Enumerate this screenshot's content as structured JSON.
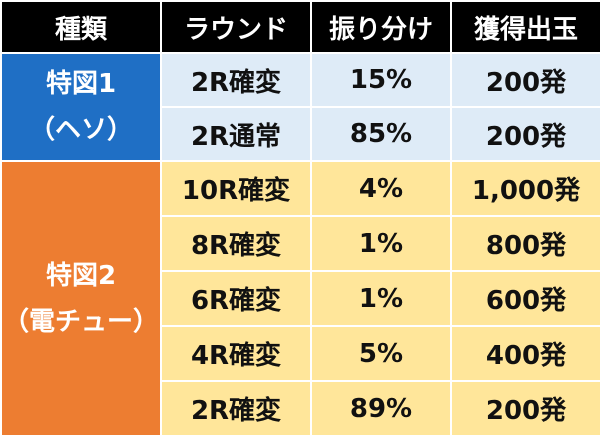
{
  "colors": {
    "header_bg": "#000000",
    "blue_category_bg": "#1f6fc5",
    "blue_cell_bg": "#deebf7",
    "orange_category_bg": "#ed7d31",
    "orange_cell_bg": "#ffe69a"
  },
  "headers": [
    "種類",
    "ラウンド",
    "振り分け",
    "獲得出玉"
  ],
  "groups": [
    {
      "category": [
        "特図1",
        "（ヘソ）"
      ],
      "color": "blue",
      "rows": [
        {
          "round": "2R確変",
          "dist": "15%",
          "payout": "200発"
        },
        {
          "round": "2R通常",
          "dist": "85%",
          "payout": "200発"
        }
      ]
    },
    {
      "category": [
        "特図2",
        "（電チュー）"
      ],
      "color": "orange",
      "rows": [
        {
          "round": "10R確変",
          "dist": "4%",
          "payout": "1,000発"
        },
        {
          "round": "8R確変",
          "dist": "1%",
          "payout": "800発"
        },
        {
          "round": "6R確変",
          "dist": "1%",
          "payout": "600発"
        },
        {
          "round": "4R確変",
          "dist": "5%",
          "payout": "400発"
        },
        {
          "round": "2R確変",
          "dist": "89%",
          "payout": "200発"
        }
      ]
    }
  ]
}
